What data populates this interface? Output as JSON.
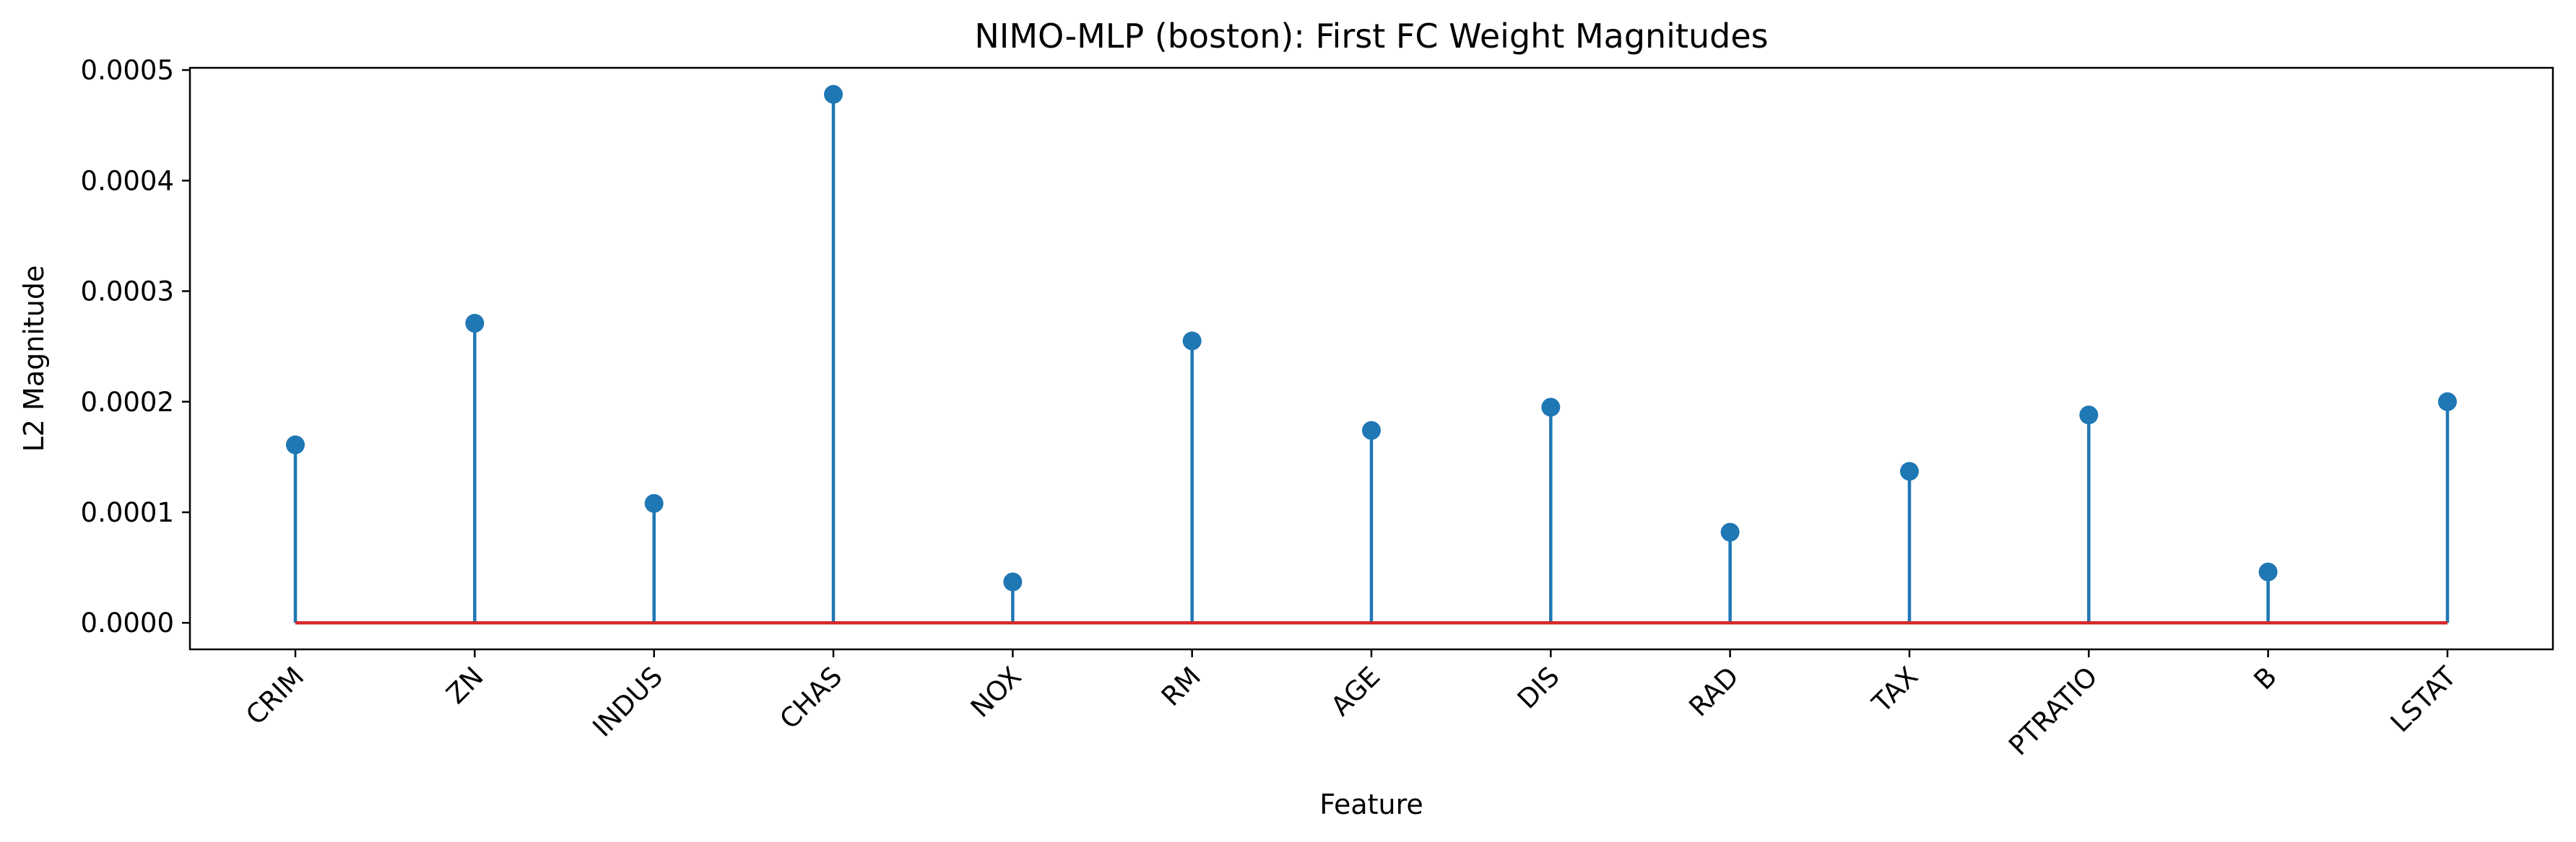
{
  "chart_data": {
    "type": "stem",
    "title": "NIMO-MLP (boston): First FC Weight Magnitudes",
    "xlabel": "Feature",
    "ylabel": "L2 Magnitude",
    "categories": [
      "CRIM",
      "ZN",
      "INDUS",
      "CHAS",
      "NOX",
      "RM",
      "AGE",
      "DIS",
      "RAD",
      "TAX",
      "PTRATIO",
      "B",
      "LSTAT"
    ],
    "values": [
      0.000161,
      0.000271,
      0.000108,
      0.000478,
      3.7e-05,
      0.000255,
      0.000174,
      0.000195,
      8.2e-05,
      0.000137,
      0.000188,
      4.6e-05,
      0.0002
    ],
    "ylim": [
      -2.4e-05,
      0.000502
    ],
    "yticks": [
      0.0,
      0.0001,
      0.0002,
      0.0003,
      0.0004,
      0.0005
    ],
    "ytick_labels": [
      "0.0000",
      "0.0001",
      "0.0002",
      "0.0003",
      "0.0004",
      "0.0005"
    ],
    "grid": false,
    "colors": {
      "stem": "#1f77b4",
      "marker": "#1f77b4",
      "baseline": "#d62728",
      "axes": "#000000"
    }
  }
}
